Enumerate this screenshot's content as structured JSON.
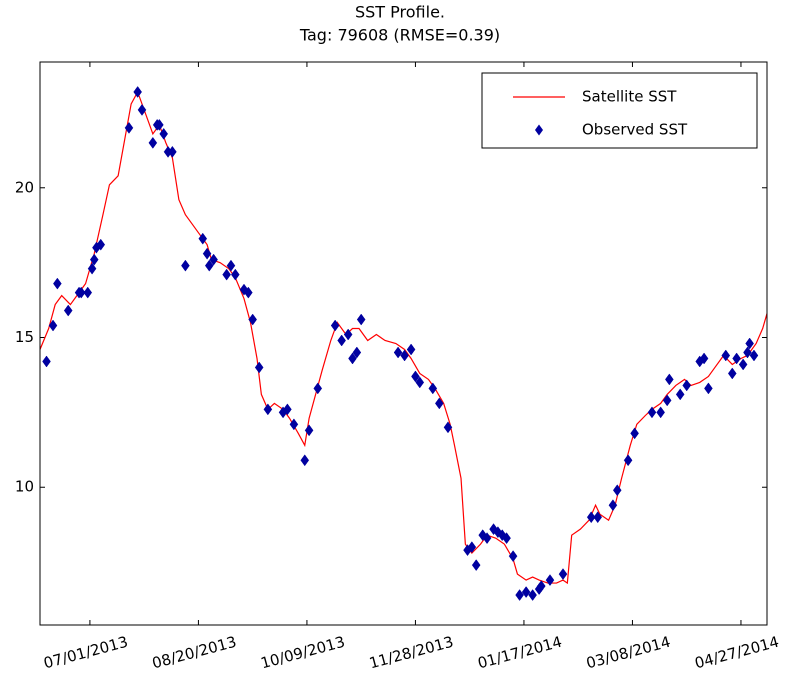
{
  "chart_data": {
    "type": "line",
    "title": "SST Profile.",
    "subtitle": "Tag: 79608 (RMSE=0.39)",
    "xlim": [
      "2013-06-08",
      "2014-05-09"
    ],
    "xticks": [
      {
        "value": "2013-07-01",
        "label": "07/01/2013"
      },
      {
        "value": "2013-08-20",
        "label": "08/20/2013"
      },
      {
        "value": "2013-10-09",
        "label": "10/09/2013"
      },
      {
        "value": "2013-11-28",
        "label": "11/28/2013"
      },
      {
        "value": "2014-01-17",
        "label": "01/17/2014"
      },
      {
        "value": "2014-03-08",
        "label": "03/08/2014"
      },
      {
        "value": "2014-04-27",
        "label": "04/27/2014"
      }
    ],
    "ylim": [
      5.4,
      24.2
    ],
    "yticks": [
      10,
      15,
      20
    ],
    "grid": false,
    "legend": "upper right",
    "series": [
      {
        "name": "Satellite SST",
        "type": "line",
        "color": "#ff0000",
        "x": [
          "2013-06-08",
          "2013-06-12",
          "2013-06-15",
          "2013-06-18",
          "2013-06-22",
          "2013-06-26",
          "2013-06-29",
          "2013-07-03",
          "2013-07-07",
          "2013-07-10",
          "2013-07-14",
          "2013-07-17",
          "2013-07-20",
          "2013-07-23",
          "2013-07-26",
          "2013-07-30",
          "2013-08-02",
          "2013-08-05",
          "2013-08-08",
          "2013-08-11",
          "2013-08-14",
          "2013-08-17",
          "2013-08-20",
          "2013-08-24",
          "2013-08-26",
          "2013-08-30",
          "2013-09-03",
          "2013-09-06",
          "2013-09-10",
          "2013-09-13",
          "2013-09-16",
          "2013-09-18",
          "2013-09-21",
          "2013-09-24",
          "2013-09-28",
          "2013-10-01",
          "2013-10-05",
          "2013-10-08",
          "2013-10-10",
          "2013-10-13",
          "2013-10-16",
          "2013-10-20",
          "2013-10-23",
          "2013-10-27",
          "2013-10-30",
          "2013-11-02",
          "2013-11-06",
          "2013-11-10",
          "2013-11-14",
          "2013-11-19",
          "2013-11-23",
          "2013-11-26",
          "2013-11-30",
          "2013-12-04",
          "2013-12-07",
          "2013-12-11",
          "2013-12-14",
          "2013-12-16",
          "2013-12-19",
          "2013-12-21",
          "2013-12-24",
          "2013-12-28",
          "2013-12-31",
          "2014-01-04",
          "2014-01-08",
          "2014-01-12",
          "2014-01-14",
          "2014-01-18",
          "2014-01-21",
          "2014-01-24",
          "2014-01-28",
          "2014-02-01",
          "2014-02-04",
          "2014-02-06",
          "2014-02-08",
          "2014-02-12",
          "2014-02-16",
          "2014-02-19",
          "2014-02-21",
          "2014-02-25",
          "2014-02-28",
          "2014-03-03",
          "2014-03-07",
          "2014-03-10",
          "2014-03-14",
          "2014-03-17",
          "2014-03-21",
          "2014-03-24",
          "2014-03-28",
          "2014-04-01",
          "2014-04-04",
          "2014-04-08",
          "2014-04-12",
          "2014-04-15",
          "2014-04-19",
          "2014-04-23",
          "2014-04-27",
          "2014-04-30",
          "2014-05-04",
          "2014-05-07",
          "2014-05-09"
        ],
        "values": [
          14.6,
          15.3,
          16.1,
          16.4,
          16.1,
          16.5,
          16.8,
          17.8,
          19.1,
          20.1,
          20.4,
          21.6,
          22.8,
          23.2,
          22.6,
          21.8,
          22.1,
          21.5,
          21.0,
          19.6,
          19.1,
          18.8,
          18.5,
          18.1,
          17.6,
          17.5,
          17.3,
          17.0,
          16.3,
          15.5,
          14.3,
          13.1,
          12.6,
          12.8,
          12.6,
          12.3,
          11.8,
          11.4,
          12.3,
          13.1,
          13.9,
          14.9,
          15.5,
          15.1,
          15.3,
          15.3,
          14.9,
          15.1,
          14.9,
          14.8,
          14.6,
          14.3,
          13.8,
          13.6,
          13.3,
          12.8,
          12.1,
          11.4,
          10.3,
          8.1,
          7.8,
          8.1,
          8.4,
          8.3,
          8.1,
          7.6,
          7.1,
          6.9,
          7.0,
          6.9,
          6.8,
          6.8,
          6.9,
          6.8,
          8.4,
          8.6,
          8.9,
          9.4,
          9.1,
          8.9,
          9.4,
          10.3,
          11.4,
          12.1,
          12.4,
          12.6,
          12.8,
          13.1,
          13.4,
          13.6,
          13.4,
          13.5,
          13.7,
          14.0,
          14.4,
          14.1,
          14.3,
          14.4,
          14.8,
          15.3,
          15.8
        ]
      },
      {
        "name": "Observed SST",
        "type": "scatter",
        "color": "#0000a0",
        "x": [
          "2013-06-11",
          "2013-06-14",
          "2013-06-16",
          "2013-06-21",
          "2013-06-26",
          "2013-06-27",
          "2013-06-30",
          "2013-07-02",
          "2013-07-03",
          "2013-07-04",
          "2013-07-06",
          "2013-07-19",
          "2013-07-23",
          "2013-07-25",
          "2013-07-30",
          "2013-08-01",
          "2013-08-02",
          "2013-08-04",
          "2013-08-06",
          "2013-08-08",
          "2013-08-14",
          "2013-08-22",
          "2013-08-24",
          "2013-08-25",
          "2013-08-27",
          "2013-09-02",
          "2013-09-04",
          "2013-09-06",
          "2013-09-10",
          "2013-09-12",
          "2013-09-14",
          "2013-09-17",
          "2013-09-21",
          "2013-09-28",
          "2013-09-30",
          "2013-10-03",
          "2013-10-08",
          "2013-10-10",
          "2013-10-14",
          "2013-10-22",
          "2013-10-25",
          "2013-10-28",
          "2013-10-30",
          "2013-11-01",
          "2013-11-03",
          "2013-11-20",
          "2013-11-23",
          "2013-11-26",
          "2013-11-28",
          "2013-11-30",
          "2013-12-06",
          "2013-12-09",
          "2013-12-13",
          "2013-12-22",
          "2013-12-24",
          "2013-12-26",
          "2013-12-29",
          "2013-12-31",
          "2014-01-03",
          "2014-01-05",
          "2014-01-07",
          "2014-01-09",
          "2014-01-12",
          "2014-01-15",
          "2014-01-18",
          "2014-01-21",
          "2014-01-24",
          "2014-01-25",
          "2014-01-29",
          "2014-02-04",
          "2014-02-17",
          "2014-02-20",
          "2014-02-27",
          "2014-03-01",
          "2014-03-06",
          "2014-03-09",
          "2014-03-17",
          "2014-03-21",
          "2014-03-24",
          "2014-03-25",
          "2014-03-30",
          "2014-04-02",
          "2014-04-08",
          "2014-04-10",
          "2014-04-12",
          "2014-04-20",
          "2014-04-23",
          "2014-04-25",
          "2014-04-28",
          "2014-04-30",
          "2014-05-01",
          "2014-05-03"
        ],
        "values": [
          14.2,
          15.4,
          16.8,
          15.9,
          16.5,
          16.5,
          16.5,
          17.3,
          17.6,
          18.0,
          18.1,
          22.0,
          23.2,
          22.6,
          21.5,
          22.1,
          22.1,
          21.8,
          21.2,
          21.2,
          17.4,
          18.3,
          17.8,
          17.4,
          17.6,
          17.1,
          17.4,
          17.1,
          16.6,
          16.5,
          15.6,
          14.0,
          12.6,
          12.5,
          12.6,
          12.1,
          10.9,
          11.9,
          13.3,
          15.4,
          14.9,
          15.1,
          14.3,
          14.5,
          15.6,
          14.5,
          14.4,
          14.6,
          13.7,
          13.5,
          13.3,
          12.8,
          12.0,
          7.9,
          8.0,
          7.4,
          8.4,
          8.3,
          8.6,
          8.5,
          8.4,
          8.3,
          7.7,
          6.4,
          6.5,
          6.4,
          6.6,
          6.7,
          6.9,
          7.1,
          9.0,
          9.0,
          9.4,
          9.9,
          10.9,
          11.8,
          12.5,
          12.5,
          12.9,
          13.6,
          13.1,
          13.4,
          14.2,
          14.3,
          13.3,
          14.4,
          13.8,
          14.3,
          14.1,
          14.5,
          14.8,
          14.4
        ]
      }
    ]
  }
}
